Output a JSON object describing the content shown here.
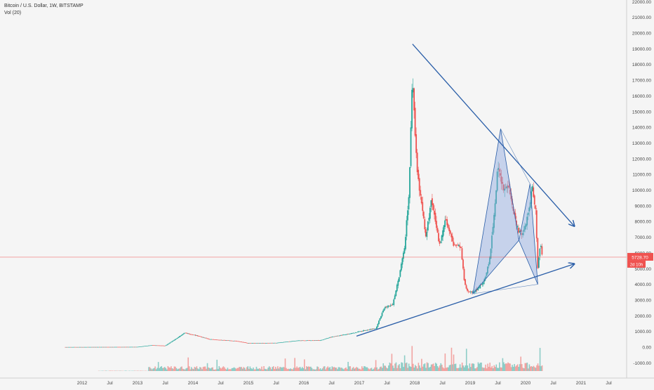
{
  "header": {
    "symbol_title": "Bitcoin / U.S. Dollar, 1W, BITSTAMP",
    "volume_label": "Vol (20)"
  },
  "price_tag": {
    "value": "5728.70",
    "countdown": "2d 10h"
  },
  "colors": {
    "up": "#26a69a",
    "down": "#ef5350",
    "trendline": "#2a5ea8",
    "pattern_fill": "#8fa8e0",
    "price_line": "#ef5350",
    "background": "#f5f5f5"
  },
  "chart_data": {
    "type": "candlestick",
    "x_axis": {
      "ticks": [
        "2012",
        "Jul",
        "2013",
        "Jul",
        "2014",
        "Jul",
        "2015",
        "Jul",
        "2016",
        "Jul",
        "2017",
        "Jul",
        "2018",
        "Jul",
        "2019",
        "Jul",
        "2020",
        "Jul",
        "2021",
        "Jul"
      ],
      "tick_times": [
        2012.0,
        2012.5,
        2013.0,
        2013.5,
        2014.0,
        2014.5,
        2015.0,
        2015.5,
        2016.0,
        2016.5,
        2017.0,
        2017.5,
        2018.0,
        2018.5,
        2019.0,
        2019.5,
        2020.0,
        2020.5,
        2021.0,
        2021.5
      ],
      "range": [
        2011.4,
        2022.0
      ]
    },
    "y_axis": {
      "ticks": [
        "22000.00",
        "21000.00",
        "20000.00",
        "19000.00",
        "18000.00",
        "17000.00",
        "16000.00",
        "15000.00",
        "14000.00",
        "13000.00",
        "12000.00",
        "11000.00",
        "10000.00",
        "9000.00",
        "8000.00",
        "7000.00",
        "6000.00",
        "5000.00",
        "4000.00",
        "3000.00",
        "2000.00",
        "1000.00",
        "0.00",
        "-1000.00"
      ],
      "tick_values": [
        22000,
        21000,
        20000,
        19000,
        18000,
        17000,
        16000,
        15000,
        14000,
        13000,
        12000,
        11000,
        10000,
        9000,
        8000,
        7000,
        6000,
        5000,
        4000,
        3000,
        2000,
        1000,
        0,
        -1000
      ],
      "range": [
        -1800,
        22200
      ]
    },
    "price_path": [
      [
        2011.7,
        5
      ],
      [
        2012.5,
        10
      ],
      [
        2013.0,
        15
      ],
      [
        2013.25,
        120
      ],
      [
        2013.5,
        90
      ],
      [
        2013.85,
        900
      ],
      [
        2014.0,
        800
      ],
      [
        2014.3,
        500
      ],
      [
        2014.8,
        380
      ],
      [
        2015.0,
        250
      ],
      [
        2015.5,
        270
      ],
      [
        2015.9,
        420
      ],
      [
        2016.3,
        430
      ],
      [
        2016.5,
        650
      ],
      [
        2016.9,
        900
      ],
      [
        2017.0,
        1000
      ],
      [
        2017.3,
        1200
      ],
      [
        2017.45,
        2500
      ],
      [
        2017.6,
        2700
      ],
      [
        2017.72,
        4500
      ],
      [
        2017.82,
        6500
      ],
      [
        2017.9,
        10000
      ],
      [
        2017.96,
        17500
      ],
      [
        2018.0,
        14000
      ],
      [
        2018.05,
        11000
      ],
      [
        2018.13,
        9000
      ],
      [
        2018.2,
        7000
      ],
      [
        2018.3,
        9300
      ],
      [
        2018.45,
        6500
      ],
      [
        2018.55,
        8200
      ],
      [
        2018.7,
        6500
      ],
      [
        2018.83,
        6400
      ],
      [
        2018.9,
        4000
      ],
      [
        2018.96,
        3500
      ],
      [
        2019.1,
        3600
      ],
      [
        2019.25,
        4200
      ],
      [
        2019.35,
        5500
      ],
      [
        2019.42,
        8000
      ],
      [
        2019.5,
        11500
      ],
      [
        2019.6,
        10000
      ],
      [
        2019.7,
        10300
      ],
      [
        2019.8,
        8300
      ],
      [
        2019.88,
        7300
      ],
      [
        2019.95,
        7200
      ],
      [
        2020.05,
        8500
      ],
      [
        2020.12,
        10200
      ],
      [
        2020.18,
        8800
      ],
      [
        2020.22,
        5000
      ],
      [
        2020.27,
        6800
      ],
      [
        2020.3,
        5728
      ]
    ],
    "volume_bars_note": "volume histogram drawn below price",
    "lines": {
      "downtrend": [
        [
          2017.96,
          19300
        ],
        [
          2020.88,
          7700
        ]
      ],
      "uptrend": [
        [
          2016.95,
          700
        ],
        [
          2020.88,
          5300
        ]
      ],
      "current_price": 5728.7
    },
    "harmonic_pattern": {
      "points": [
        [
          2019.05,
          3400
        ],
        [
          2019.55,
          13900
        ],
        [
          2019.88,
          6800
        ],
        [
          2020.08,
          10400
        ],
        [
          2020.22,
          4000
        ]
      ]
    }
  }
}
